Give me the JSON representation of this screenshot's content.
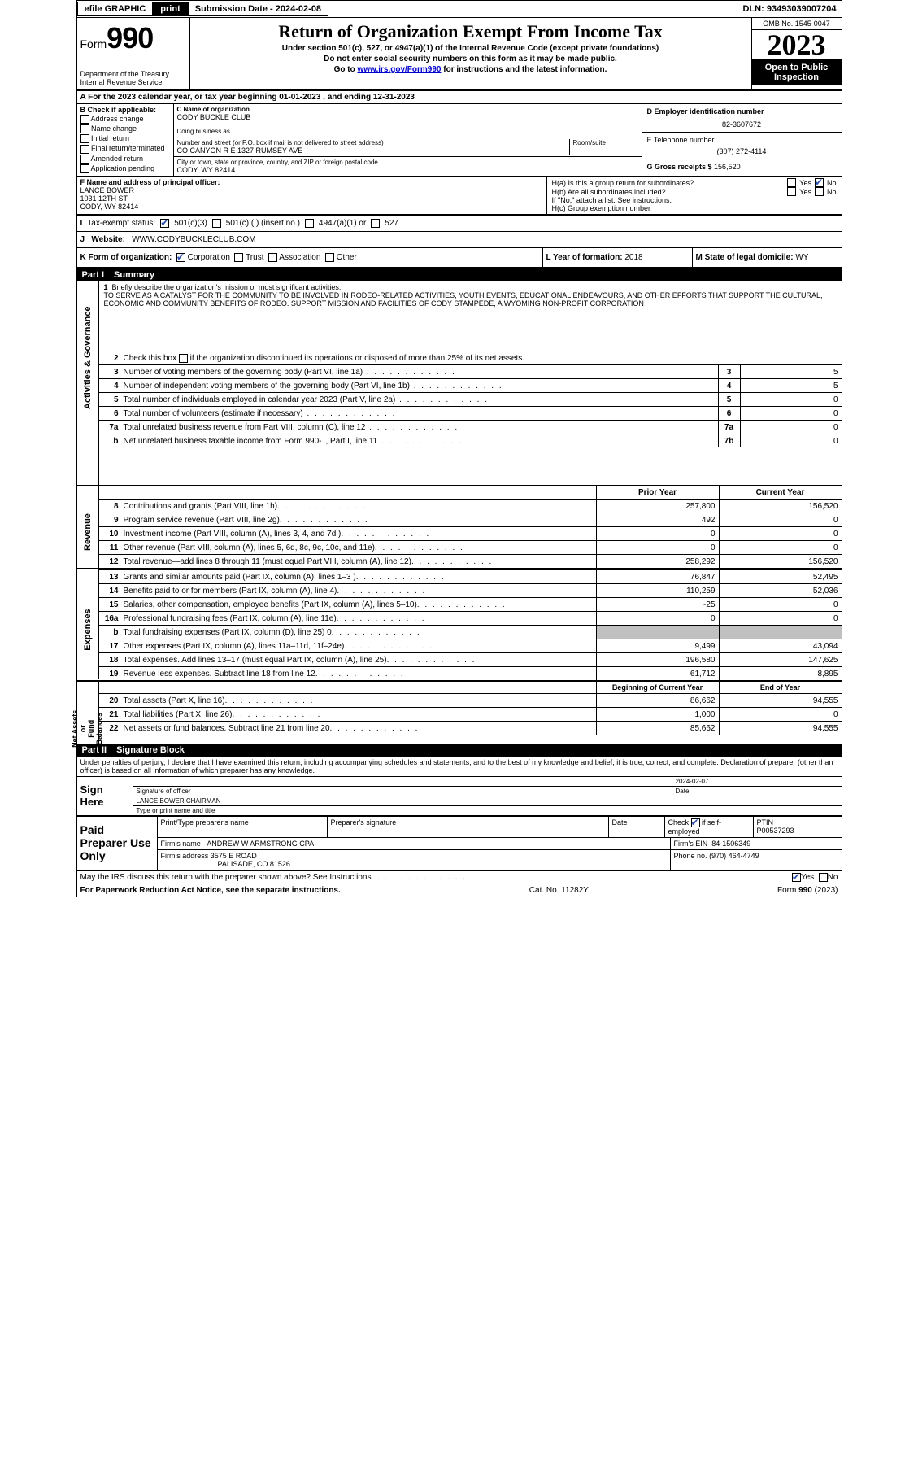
{
  "topbar": {
    "efile": "efile GRAPHIC",
    "print": "print",
    "subdate_label": "Submission Date - ",
    "subdate": "2024-02-08",
    "dln_label": "DLN: ",
    "dln": "93493039007204"
  },
  "header": {
    "form_label": "Form",
    "form_number": "990",
    "dept": "Department of the Treasury\nInternal Revenue Service",
    "title": "Return of Organization Exempt From Income Tax",
    "sub1": "Under section 501(c), 527, or 4947(a)(1) of the Internal Revenue Code (except private foundations)",
    "sub2": "Do not enter social security numbers on this form as it may be made public.",
    "sub3_prefix": "Go to ",
    "sub3_link": "www.irs.gov/Form990",
    "sub3_suffix": " for instructions and the latest information.",
    "omb": "OMB No. 1545-0047",
    "year": "2023",
    "open": "Open to Public Inspection"
  },
  "row_a": {
    "prefix": "A For the 2023 calendar year, or tax year beginning ",
    "begin": "01-01-2023",
    "mid": " , and ending ",
    "end": "12-31-2023"
  },
  "checks_b": {
    "header": "B Check if applicable:",
    "items": [
      "Address change",
      "Name change",
      "Initial return",
      "Final return/terminated",
      "Amended return",
      "Application pending"
    ]
  },
  "org": {
    "c_label": "C Name of organization",
    "name": "CODY BUCKLE CLUB",
    "dba_label": "Doing business as",
    "addr_label": "Number and street (or P.O. box if mail is not delivered to street address)",
    "room_label": "Room/suite",
    "addr": "CO CANYON R E 1327 RUMSEY AVE",
    "city_label": "City or town, state or province, country, and ZIP or foreign postal code",
    "city": "CODY, WY  82414"
  },
  "right_col": {
    "d_label": "D Employer identification number",
    "ein": "82-3607672",
    "e_label": "E Telephone number",
    "phone": "(307) 272-4114",
    "g_label": "G Gross receipts $ ",
    "gross": "156,520"
  },
  "f": {
    "label": "F Name and address of principal officer:",
    "name": "LANCE BOWER",
    "addr1": "1031 12TH ST",
    "addr2": "CODY, WY  82414"
  },
  "h": {
    "a_label": "H(a)  Is this a group return for subordinates?",
    "a_yes": "Yes",
    "a_no": "No",
    "b_label": "H(b)  Are all subordinates included?",
    "b_yes": "Yes",
    "b_no": "No",
    "b_note": "If \"No,\" attach a list. See instructions.",
    "c_label": "H(c)  Group exemption number "
  },
  "i": {
    "label": "Tax-exempt status:",
    "o1": "501(c)(3)",
    "o2": "501(c) (  ) (insert no.)",
    "o3": "4947(a)(1) or",
    "o4": "527"
  },
  "j": {
    "label": "Website:",
    "value": "WWW.CODYBUCKLECLUB.COM"
  },
  "k": {
    "label": "K Form of organization:",
    "o1": "Corporation",
    "o2": "Trust",
    "o3": "Association",
    "o4": "Other",
    "l_label": "L Year of formation: ",
    "l_val": "2018",
    "m_label": "M State of legal domicile: ",
    "m_val": "WY"
  },
  "part1": {
    "num": "Part I",
    "title": "Summary"
  },
  "summary": {
    "vtabs": {
      "gov": "Activities & Governance",
      "rev": "Revenue",
      "exp": "Expenses",
      "net": "Net Assets or\nFund Balances"
    },
    "line1_label": "Briefly describe the organization's mission or most significant activities:",
    "mission": "TO SERVE AS A CATALYST FOR THE COMMUNITY TO BE INVOLVED IN RODEO-RELATED ACTIVITIES, YOUTH EVENTS, EDUCATIONAL ENDEAVOURS, AND OTHER EFFORTS THAT SUPPORT THE CULTURAL, ECONOMIC AND COMMUNITY BENEFITS OF RODEO. SUPPORT MISSION AND FACILITIES OF CODY STAMPEDE, A WYOMING NON-PROFIT CORPORATION",
    "line2": "Check this box     if the organization discontinued its operations or disposed of more than 25% of its net assets.",
    "rows_gov": [
      {
        "n": "3",
        "desc": "Number of voting members of the governing body (Part VI, line 1a)",
        "box": "3",
        "val": "5"
      },
      {
        "n": "4",
        "desc": "Number of independent voting members of the governing body (Part VI, line 1b)",
        "box": "4",
        "val": "5"
      },
      {
        "n": "5",
        "desc": "Total number of individuals employed in calendar year 2023 (Part V, line 2a)",
        "box": "5",
        "val": "0"
      },
      {
        "n": "6",
        "desc": "Total number of volunteers (estimate if necessary)",
        "box": "6",
        "val": "0"
      },
      {
        "n": "7a",
        "desc": "Total unrelated business revenue from Part VIII, column (C), line 12",
        "box": "7a",
        "val": "0"
      },
      {
        "n": "b",
        "desc": "Net unrelated business taxable income from Form 990-T, Part I, line 11",
        "box": "7b",
        "val": "0"
      }
    ],
    "fin_header": {
      "c1": "Prior Year",
      "c2": "Current Year"
    },
    "rows_rev": [
      {
        "n": "8",
        "desc": "Contributions and grants (Part VIII, line 1h)",
        "c1": "257,800",
        "c2": "156,520"
      },
      {
        "n": "9",
        "desc": "Program service revenue (Part VIII, line 2g)",
        "c1": "492",
        "c2": "0"
      },
      {
        "n": "10",
        "desc": "Investment income (Part VIII, column (A), lines 3, 4, and 7d )",
        "c1": "0",
        "c2": "0"
      },
      {
        "n": "11",
        "desc": "Other revenue (Part VIII, column (A), lines 5, 6d, 8c, 9c, 10c, and 11e)",
        "c1": "0",
        "c2": "0"
      },
      {
        "n": "12",
        "desc": "Total revenue—add lines 8 through 11 (must equal Part VIII, column (A), line 12)",
        "c1": "258,292",
        "c2": "156,520"
      }
    ],
    "rows_exp": [
      {
        "n": "13",
        "desc": "Grants and similar amounts paid (Part IX, column (A), lines 1–3 )",
        "c1": "76,847",
        "c2": "52,495"
      },
      {
        "n": "14",
        "desc": "Benefits paid to or for members (Part IX, column (A), line 4)",
        "c1": "110,259",
        "c2": "52,036"
      },
      {
        "n": "15",
        "desc": "Salaries, other compensation, employee benefits (Part IX, column (A), lines 5–10)",
        "c1": "-25",
        "c2": "0"
      },
      {
        "n": "16a",
        "desc": "Professional fundraising fees (Part IX, column (A), line 11e)",
        "c1": "0",
        "c2": "0"
      },
      {
        "n": "b",
        "desc": "Total fundraising expenses (Part IX, column (D), line 25) 0",
        "c1": "grey",
        "c2": "grey"
      },
      {
        "n": "17",
        "desc": "Other expenses (Part IX, column (A), lines 11a–11d, 11f–24e)",
        "c1": "9,499",
        "c2": "43,094"
      },
      {
        "n": "18",
        "desc": "Total expenses. Add lines 13–17 (must equal Part IX, column (A), line 25)",
        "c1": "196,580",
        "c2": "147,625"
      },
      {
        "n": "19",
        "desc": "Revenue less expenses. Subtract line 18 from line 12",
        "c1": "61,712",
        "c2": "8,895"
      }
    ],
    "net_header": {
      "c1": "Beginning of Current Year",
      "c2": "End of Year"
    },
    "rows_net": [
      {
        "n": "20",
        "desc": "Total assets (Part X, line 16)",
        "c1": "86,662",
        "c2": "94,555"
      },
      {
        "n": "21",
        "desc": "Total liabilities (Part X, line 26)",
        "c1": "1,000",
        "c2": "0"
      },
      {
        "n": "22",
        "desc": "Net assets or fund balances. Subtract line 21 from line 20",
        "c1": "85,662",
        "c2": "94,555"
      }
    ]
  },
  "part2": {
    "num": "Part II",
    "title": "Signature Block"
  },
  "sig": {
    "declaration": "Under penalties of perjury, I declare that I have examined this return, including accompanying schedules and statements, and to the best of my knowledge and belief, it is true, correct, and complete. Declaration of preparer (other than officer) is based on all information of which preparer has any knowledge.",
    "sign_here": "Sign Here",
    "officer_sig": "Signature of officer",
    "date_label": "Date",
    "date_val": "2024-02-07",
    "officer_name": "LANCE BOWER CHAIRMAN",
    "type_label": "Type or print name and title"
  },
  "paid": {
    "label": "Paid Preparer Use Only",
    "h1": "Print/Type preparer's name",
    "h2": "Preparer's signature",
    "h3": "Date",
    "h4_label": "Check",
    "h4_suffix": "if self-employed",
    "h5_label": "PTIN",
    "h5_val": "P00537293",
    "firm_name_label": "Firm's name",
    "firm_name": "ANDREW W ARMSTRONG CPA",
    "firm_ein_label": "Firm's EIN",
    "firm_ein": "84-1506349",
    "firm_addr_label": "Firm's address",
    "firm_addr1": "3575 E ROAD",
    "firm_addr2": "PALISADE, CO  81526",
    "phone_label": "Phone no.",
    "phone": "(970) 464-4749"
  },
  "discuss": {
    "text": "May the IRS discuss this return with the preparer shown above? See Instructions.",
    "yes": "Yes",
    "no": "No"
  },
  "pra": {
    "left": "For Paperwork Reduction Act Notice, see the separate instructions.",
    "mid": "Cat. No. 11282Y",
    "right": "Form 990 (2023)"
  }
}
